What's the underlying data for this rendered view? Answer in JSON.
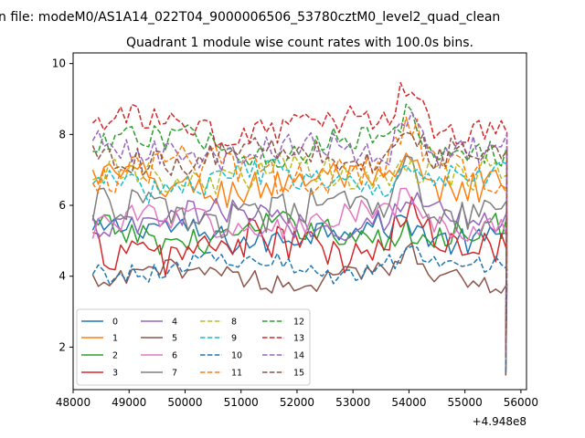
{
  "chart_data": {
    "type": "line",
    "suptitle": "n file: modeM0/AS1A14_022T04_9000006506_53780cztM0_level2_quad_clean",
    "title": "Quadrant 1 module wise count rates with 100.0s bins.",
    "xlabel": "",
    "ylabel": "",
    "x_offset_label": "+4.948e8",
    "xlim": [
      48000,
      56100
    ],
    "ylim": [
      0.8,
      10.3
    ],
    "x_ticks": [
      48000,
      49000,
      50000,
      51000,
      52000,
      53000,
      54000,
      55000,
      56000
    ],
    "x_tick_labels": [
      "48000",
      "49000",
      "50000",
      "51000",
      "52000",
      "53000",
      "54000",
      "55000",
      "56000"
    ],
    "y_ticks": [
      2,
      4,
      6,
      8,
      10
    ],
    "y_tick_labels": [
      "2",
      "4",
      "6",
      "8",
      "10"
    ],
    "x_start": 48350,
    "x_step": 100,
    "n_points": 75,
    "last_x": 55730,
    "grid": false,
    "legend_position": "lower-left",
    "series": [
      {
        "name": "0",
        "color": "#1f77b4",
        "style": "solid",
        "base": 5.2,
        "amp": 0.4,
        "end": 1.3
      },
      {
        "name": "1",
        "color": "#ff7f0e",
        "style": "solid",
        "base": 6.6,
        "amp": 0.5,
        "end": 1.5
      },
      {
        "name": "2",
        "color": "#2ca02c",
        "style": "solid",
        "base": 5.2,
        "amp": 0.4,
        "end": 1.3
      },
      {
        "name": "3",
        "color": "#d62728",
        "style": "solid",
        "base": 4.8,
        "amp": 0.6,
        "end": 1.2
      },
      {
        "name": "4",
        "color": "#9467bd",
        "style": "solid",
        "base": 5.6,
        "amp": 0.4,
        "end": 1.4
      },
      {
        "name": "5",
        "color": "#8c564b",
        "style": "solid",
        "base": 4.0,
        "amp": 0.3,
        "end": 1.2
      },
      {
        "name": "6",
        "color": "#e377c2",
        "style": "solid",
        "base": 5.5,
        "amp": 0.4,
        "end": 1.4
      },
      {
        "name": "7",
        "color": "#7f7f7f",
        "style": "solid",
        "base": 5.8,
        "amp": 0.5,
        "end": 1.4
      },
      {
        "name": "8",
        "color": "#bcbd22",
        "style": "dashed",
        "base": 6.8,
        "amp": 0.5,
        "end": 1.6
      },
      {
        "name": "9",
        "color": "#17becf",
        "style": "dashed",
        "base": 6.7,
        "amp": 0.4,
        "end": 1.6
      },
      {
        "name": "10",
        "color": "#1f77b4",
        "style": "dashed",
        "base": 4.3,
        "amp": 0.3,
        "end": 1.3
      },
      {
        "name": "11",
        "color": "#ff7f0e",
        "style": "dashed",
        "base": 7.0,
        "amp": 0.5,
        "end": 1.7
      },
      {
        "name": "12",
        "color": "#2ca02c",
        "style": "dashed",
        "base": 7.7,
        "amp": 0.4,
        "end": 1.8
      },
      {
        "name": "13",
        "color": "#d62728",
        "style": "dashed",
        "base": 8.2,
        "amp": 0.4,
        "end": 1.9
      },
      {
        "name": "14",
        "color": "#9467bd",
        "style": "dashed",
        "base": 7.5,
        "amp": 0.4,
        "end": 1.7
      },
      {
        "name": "15",
        "color": "#8c564b",
        "style": "dashed",
        "base": 7.4,
        "amp": 0.4,
        "end": 1.7
      }
    ],
    "features": {
      "peak_x": 54000,
      "peak_boost": [
        0.4,
        0.9,
        0.3,
        1.4,
        0.5,
        0.6,
        0.8,
        1.5,
        0.9,
        0.8,
        0.4,
        1.2,
        0.8,
        1.5,
        1.3,
        1.0
      ]
    }
  }
}
